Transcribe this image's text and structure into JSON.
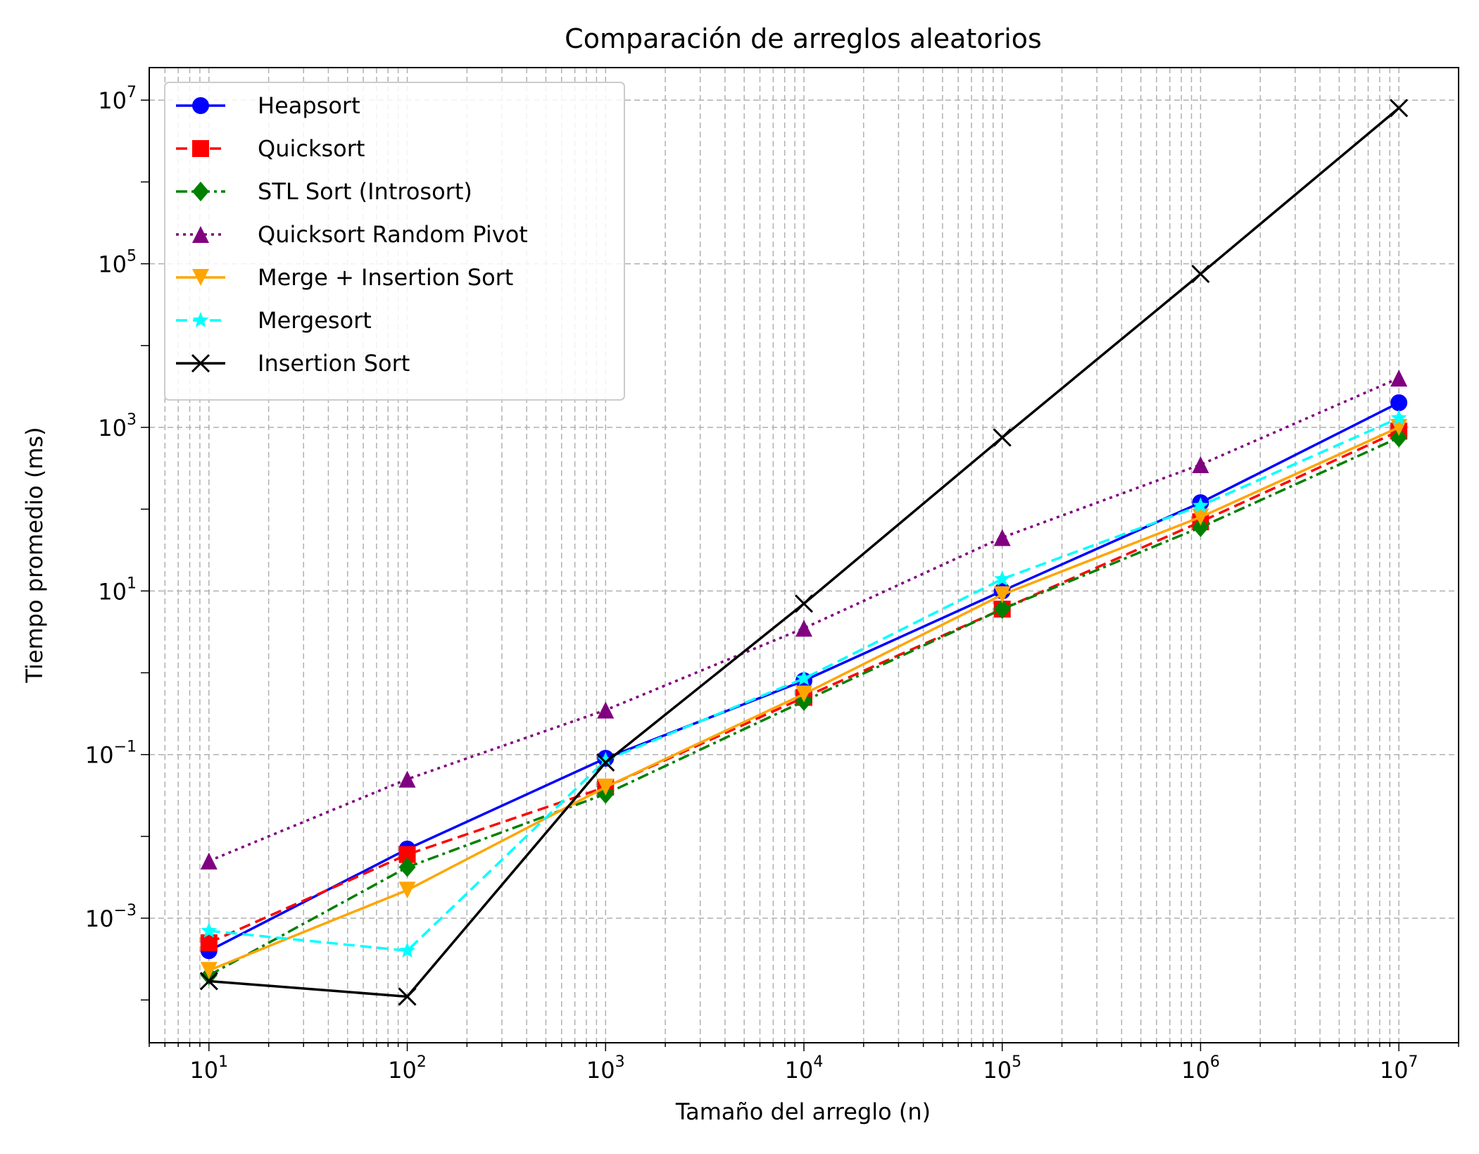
{
  "chart_data": {
    "type": "line",
    "title": "Comparación de arreglos aleatorios",
    "xlabel": "Tamaño del arreglo (n)",
    "ylabel": "Tiempo promedio (ms)",
    "x_scale": "log",
    "y_scale": "log",
    "xlim": [
      5,
      20000000
    ],
    "ylim": [
      3e-05,
      25000000
    ],
    "grid": true,
    "legend_position": "top-left",
    "x_ticks": [
      {
        "base": "10",
        "exp": "1",
        "value": 10
      },
      {
        "base": "10",
        "exp": "2",
        "value": 100
      },
      {
        "base": "10",
        "exp": "3",
        "value": 1000
      },
      {
        "base": "10",
        "exp": "4",
        "value": 10000
      },
      {
        "base": "10",
        "exp": "5",
        "value": 100000
      },
      {
        "base": "10",
        "exp": "6",
        "value": 1000000
      },
      {
        "base": "10",
        "exp": "7",
        "value": 10000000
      }
    ],
    "y_ticks": [
      {
        "base": "10",
        "exp": "−3",
        "value": 0.001
      },
      {
        "base": "10",
        "exp": "−1",
        "value": 0.1
      },
      {
        "base": "10",
        "exp": "1",
        "value": 10
      },
      {
        "base": "10",
        "exp": "3",
        "value": 1000
      },
      {
        "base": "10",
        "exp": "5",
        "value": 100000
      },
      {
        "base": "10",
        "exp": "7",
        "value": 10000000
      }
    ],
    "x": [
      10,
      100,
      1000,
      10000,
      100000,
      1000000,
      10000000
    ],
    "series": [
      {
        "name": "Heapsort",
        "color": "#0000ff",
        "dash": "solid",
        "marker": "circle",
        "values": [
          0.0004,
          0.007,
          0.09,
          0.8,
          10,
          120,
          2000
        ]
      },
      {
        "name": "Quicksort",
        "color": "#ff0000",
        "dash": "dashed",
        "marker": "square",
        "values": [
          0.0005,
          0.006,
          0.04,
          0.5,
          6,
          70,
          900
        ]
      },
      {
        "name": "STL Sort (Introsort)",
        "color": "#008000",
        "dash": "dashdot",
        "marker": "diamond",
        "values": [
          0.0002,
          0.0042,
          0.033,
          0.45,
          6,
          60,
          750
        ]
      },
      {
        "name": "Quicksort Random Pivot",
        "color": "#800080",
        "dash": "dotted",
        "marker": "triangle-up",
        "values": [
          0.005,
          0.05,
          0.35,
          3.5,
          45,
          350,
          4000
        ]
      },
      {
        "name": "Merge + Insertion Sort",
        "color": "#ffa500",
        "dash": "solid",
        "marker": "triangle-down",
        "values": [
          0.00023,
          0.0022,
          0.04,
          0.55,
          9,
          80,
          1000
        ]
      },
      {
        "name": "Mergesort",
        "color": "#00ffff",
        "dash": "dashed",
        "marker": "star",
        "values": [
          0.0007,
          0.0004,
          0.085,
          0.85,
          14,
          110,
          1300
        ]
      },
      {
        "name": "Insertion Sort",
        "color": "#000000",
        "dash": "solid",
        "marker": "x",
        "values": [
          0.00017,
          0.00011,
          0.08,
          7,
          750,
          75000,
          8000000
        ]
      }
    ]
  }
}
